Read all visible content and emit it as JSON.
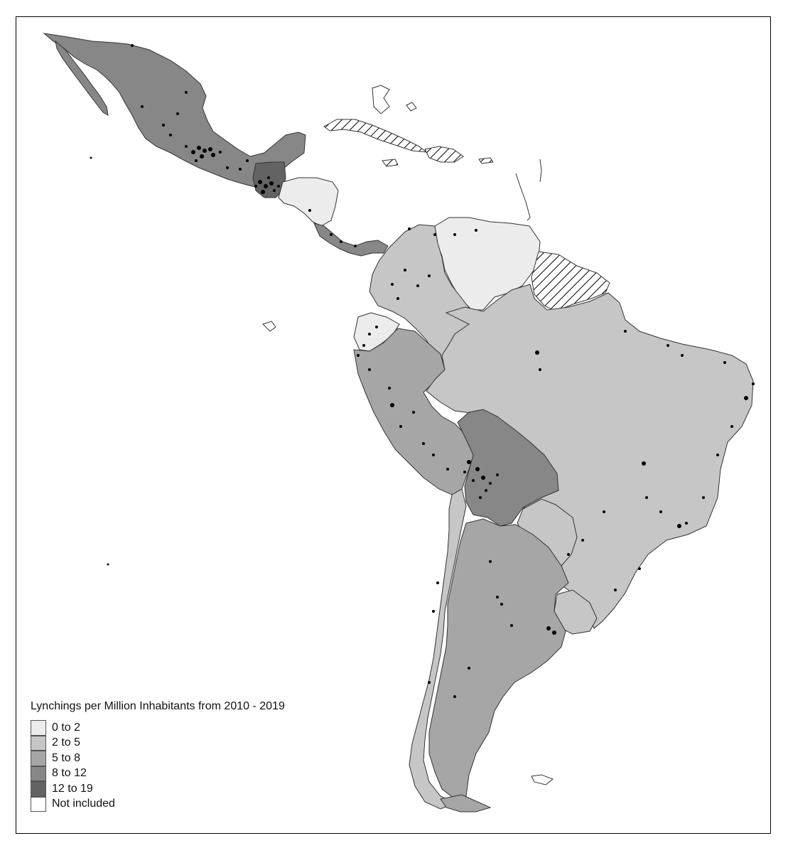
{
  "map": {
    "legend_title": "Lynchings per Million Inhabitants from 2010 - 2019",
    "legend": [
      {
        "label": "0 to 2",
        "color": "#ececec"
      },
      {
        "label": "2 to 5",
        "color": "#c6c6c6"
      },
      {
        "label": "5 to 8",
        "color": "#a6a6a6"
      },
      {
        "label": "8 to 12",
        "color": "#878787"
      },
      {
        "label": "12 to 19",
        "color": "#636363"
      },
      {
        "label": "Not included",
        "color": "#ffffff"
      }
    ],
    "colors": {
      "border": "#333333",
      "dot": "#000000",
      "hatch": "#000000"
    }
  }
}
